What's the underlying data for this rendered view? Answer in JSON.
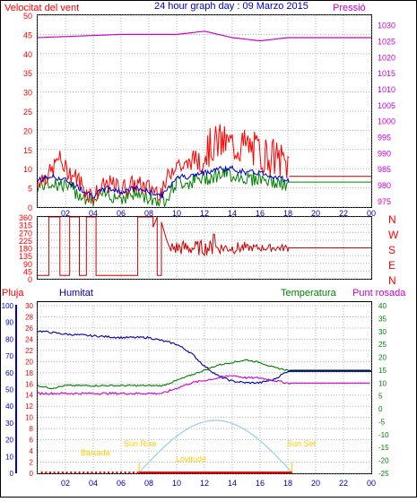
{
  "header": {
    "wind_label": "Velocitat del vent",
    "title": "24 hour graph day : 09 Marzo 2015",
    "pressure_label": "Pressió"
  },
  "compass": [
    "N",
    "W",
    "S",
    "E",
    "N"
  ],
  "lower_labels": {
    "rain": "Pluja",
    "humidity": "Humitat",
    "temperature": "Temperatura",
    "dewpoint": "Punt rosada"
  },
  "sun": {
    "sunrise_label": "Sun Rise",
    "sunset_label": "Sun Set",
    "dawn_label": "Baixada",
    "altitude_label": "Lovitude"
  },
  "colors": {
    "wind": "#ff0000",
    "wind_avg": "#0000cc",
    "gust_green": "#008000",
    "pressure": "#cc00cc",
    "direction": "#cc0000",
    "humidity": "#0000aa",
    "temperature": "#008000",
    "dewpoint": "#cc00cc",
    "sun_curve": "#99ccee",
    "sun_text": "#ffcc00",
    "frame": "#000000",
    "grid": "#b0b0b0"
  },
  "chart_data": [
    {
      "type": "line",
      "name": "wind-pressure",
      "x_ticks": [
        "02",
        "04",
        "06",
        "08",
        "10",
        "12",
        "14",
        "16",
        "18",
        "20",
        "22",
        "00"
      ],
      "wind_axis": [
        0,
        5,
        10,
        15,
        20,
        25,
        30,
        35,
        40,
        45,
        50
      ],
      "pressure_axis": [
        975,
        980,
        985,
        990,
        995,
        1000,
        1005,
        1010,
        1015,
        1020,
        1025,
        1030
      ],
      "ylim_wind": [
        0,
        50
      ],
      "ylim_pressure": [
        973,
        1033
      ],
      "wind_gust_profile": [
        [
          0,
          7
        ],
        [
          0.5,
          8
        ],
        [
          1,
          9
        ],
        [
          1.5,
          13
        ],
        [
          2,
          10
        ],
        [
          3,
          7
        ],
        [
          3.5,
          4
        ],
        [
          4,
          3
        ],
        [
          5,
          6
        ],
        [
          6,
          5
        ],
        [
          7,
          6
        ],
        [
          8,
          5
        ],
        [
          9,
          4
        ],
        [
          9.5,
          9
        ],
        [
          10,
          12
        ],
        [
          10.5,
          10
        ],
        [
          11,
          12
        ],
        [
          12,
          14
        ],
        [
          12.5,
          16
        ],
        [
          13,
          17
        ],
        [
          14,
          16
        ],
        [
          15,
          16
        ],
        [
          16,
          14
        ],
        [
          17,
          13
        ],
        [
          18,
          11
        ]
      ],
      "wind_avg_profile": [
        [
          0,
          7
        ],
        [
          1,
          8
        ],
        [
          2,
          7
        ],
        [
          3,
          5
        ],
        [
          4,
          3
        ],
        [
          5,
          5
        ],
        [
          6,
          4
        ],
        [
          7,
          5
        ],
        [
          8,
          4
        ],
        [
          9,
          3
        ],
        [
          10,
          8
        ],
        [
          11,
          8
        ],
        [
          12,
          9
        ],
        [
          13,
          10
        ],
        [
          14,
          10
        ],
        [
          15,
          9
        ],
        [
          16,
          9
        ],
        [
          17,
          8
        ],
        [
          18,
          7
        ]
      ],
      "wind_after_18": 8,
      "green_after_18": 6.5,
      "pressure_profile": [
        [
          0,
          1026
        ],
        [
          6,
          1027
        ],
        [
          10,
          1027
        ],
        [
          12,
          1028
        ],
        [
          14,
          1026
        ],
        [
          16,
          1025
        ],
        [
          18,
          1026
        ],
        [
          24,
          1026
        ]
      ]
    },
    {
      "type": "line",
      "name": "wind-direction",
      "x_ticks": [
        "02",
        "04",
        "06",
        "08",
        "10",
        "12",
        "14",
        "16",
        "18",
        "20",
        "22",
        "00"
      ],
      "y_ticks": [
        0,
        45,
        90,
        135,
        180,
        225,
        270,
        315,
        360
      ],
      "ylim": [
        0,
        360
      ],
      "steady_after_18": 180
    },
    {
      "type": "line",
      "name": "temp-humidity",
      "x_ticks": [
        "02",
        "04",
        "06",
        "08",
        "10",
        "12",
        "14",
        "16",
        "18",
        "20",
        "22",
        "00"
      ],
      "humidity_axis": [
        0,
        10,
        20,
        30,
        40,
        50,
        60,
        70,
        80,
        90,
        100
      ],
      "rain_axis": [
        0,
        2,
        4,
        6,
        8,
        10,
        12,
        14,
        16,
        18,
        20,
        22,
        24,
        26,
        28,
        30
      ],
      "temp_axis": [
        -25,
        -20,
        -15,
        -10,
        -5,
        0,
        5,
        10,
        15,
        20,
        25,
        30,
        35,
        40
      ],
      "humidity_profile": [
        [
          0,
          85
        ],
        [
          1,
          84
        ],
        [
          2,
          83
        ],
        [
          4,
          82
        ],
        [
          6,
          81
        ],
        [
          8,
          81
        ],
        [
          9,
          79
        ],
        [
          10,
          77
        ],
        [
          11,
          72
        ],
        [
          12,
          64
        ],
        [
          13,
          58
        ],
        [
          14,
          55
        ],
        [
          15,
          54
        ],
        [
          16,
          54
        ],
        [
          17,
          56
        ],
        [
          18,
          61
        ],
        [
          24,
          61
        ]
      ],
      "temperature_profile": [
        [
          0,
          9
        ],
        [
          1,
          8
        ],
        [
          2,
          9
        ],
        [
          4,
          9
        ],
        [
          6,
          9
        ],
        [
          8,
          9
        ],
        [
          9,
          9
        ],
        [
          10,
          11
        ],
        [
          11,
          13
        ],
        [
          12,
          15
        ],
        [
          13,
          17
        ],
        [
          14,
          18
        ],
        [
          15,
          19
        ],
        [
          16,
          18
        ],
        [
          17,
          16
        ],
        [
          18,
          15
        ],
        [
          24,
          15
        ]
      ],
      "dewpoint_profile": [
        [
          0,
          6
        ],
        [
          1,
          6
        ],
        [
          2,
          6
        ],
        [
          4,
          6
        ],
        [
          6,
          6
        ],
        [
          8,
          6
        ],
        [
          9,
          6
        ],
        [
          10,
          8
        ],
        [
          11,
          10
        ],
        [
          12,
          11
        ],
        [
          13,
          12
        ],
        [
          14,
          13
        ],
        [
          15,
          12
        ],
        [
          16,
          12
        ],
        [
          17,
          11
        ],
        [
          18,
          10
        ],
        [
          24,
          10
        ]
      ],
      "rain_total": 0,
      "sunrise_hour": 7.3,
      "sunset_hour": 18.3
    }
  ]
}
